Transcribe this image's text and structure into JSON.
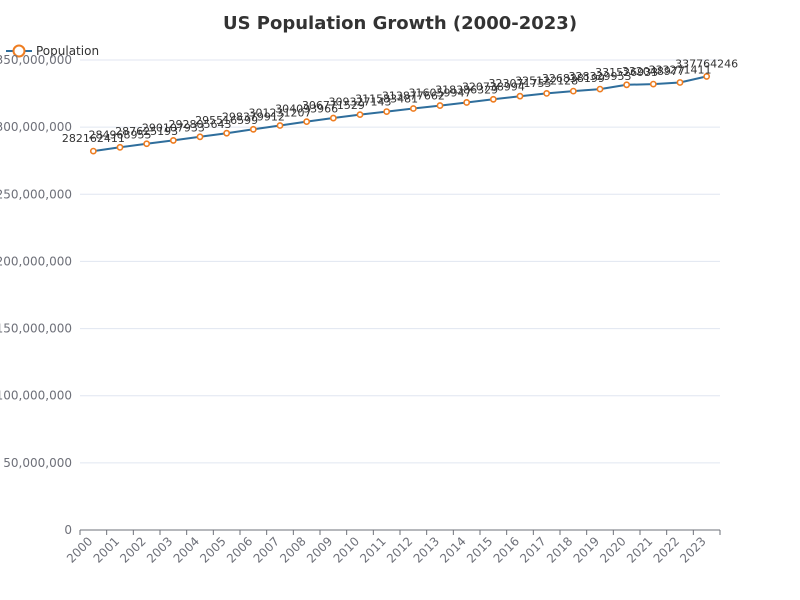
{
  "chart_data": {
    "type": "line",
    "title": "US Population Growth (2000-2023)",
    "xlabel": "",
    "ylabel": "",
    "categories": [
      "2000",
      "2001",
      "2002",
      "2003",
      "2004",
      "2005",
      "2006",
      "2007",
      "2008",
      "2009",
      "2010",
      "2011",
      "2012",
      "2013",
      "2014",
      "2015",
      "2016",
      "2017",
      "2018",
      "2019",
      "2020",
      "2021",
      "2022",
      "2023"
    ],
    "series": [
      {
        "name": "Population",
        "values": [
          282162411,
          284968955,
          287625193,
          290107933,
          292805643,
          295516599,
          298379912,
          301231207,
          304093966,
          306771529,
          309327143,
          311583481,
          313877662,
          316059947,
          318386329,
          320738994,
          323071755,
          325122128,
          326838199,
          328329953,
          331526933,
          332048977,
          333271411,
          337764246
        ]
      }
    ],
    "ylim": [
      0,
      350000000
    ],
    "yticks": [
      "0",
      "50,000,000",
      "100,000,000",
      "150,000,000",
      "200,000,000",
      "250,000,000",
      "300,000,000",
      "350,000,000"
    ],
    "grid": true,
    "legend": "top-left",
    "colors": {
      "line": "#2f6e9c",
      "marker": "#ee7d21",
      "grid": "#e0e6f1",
      "axis": "#6e7079"
    }
  }
}
